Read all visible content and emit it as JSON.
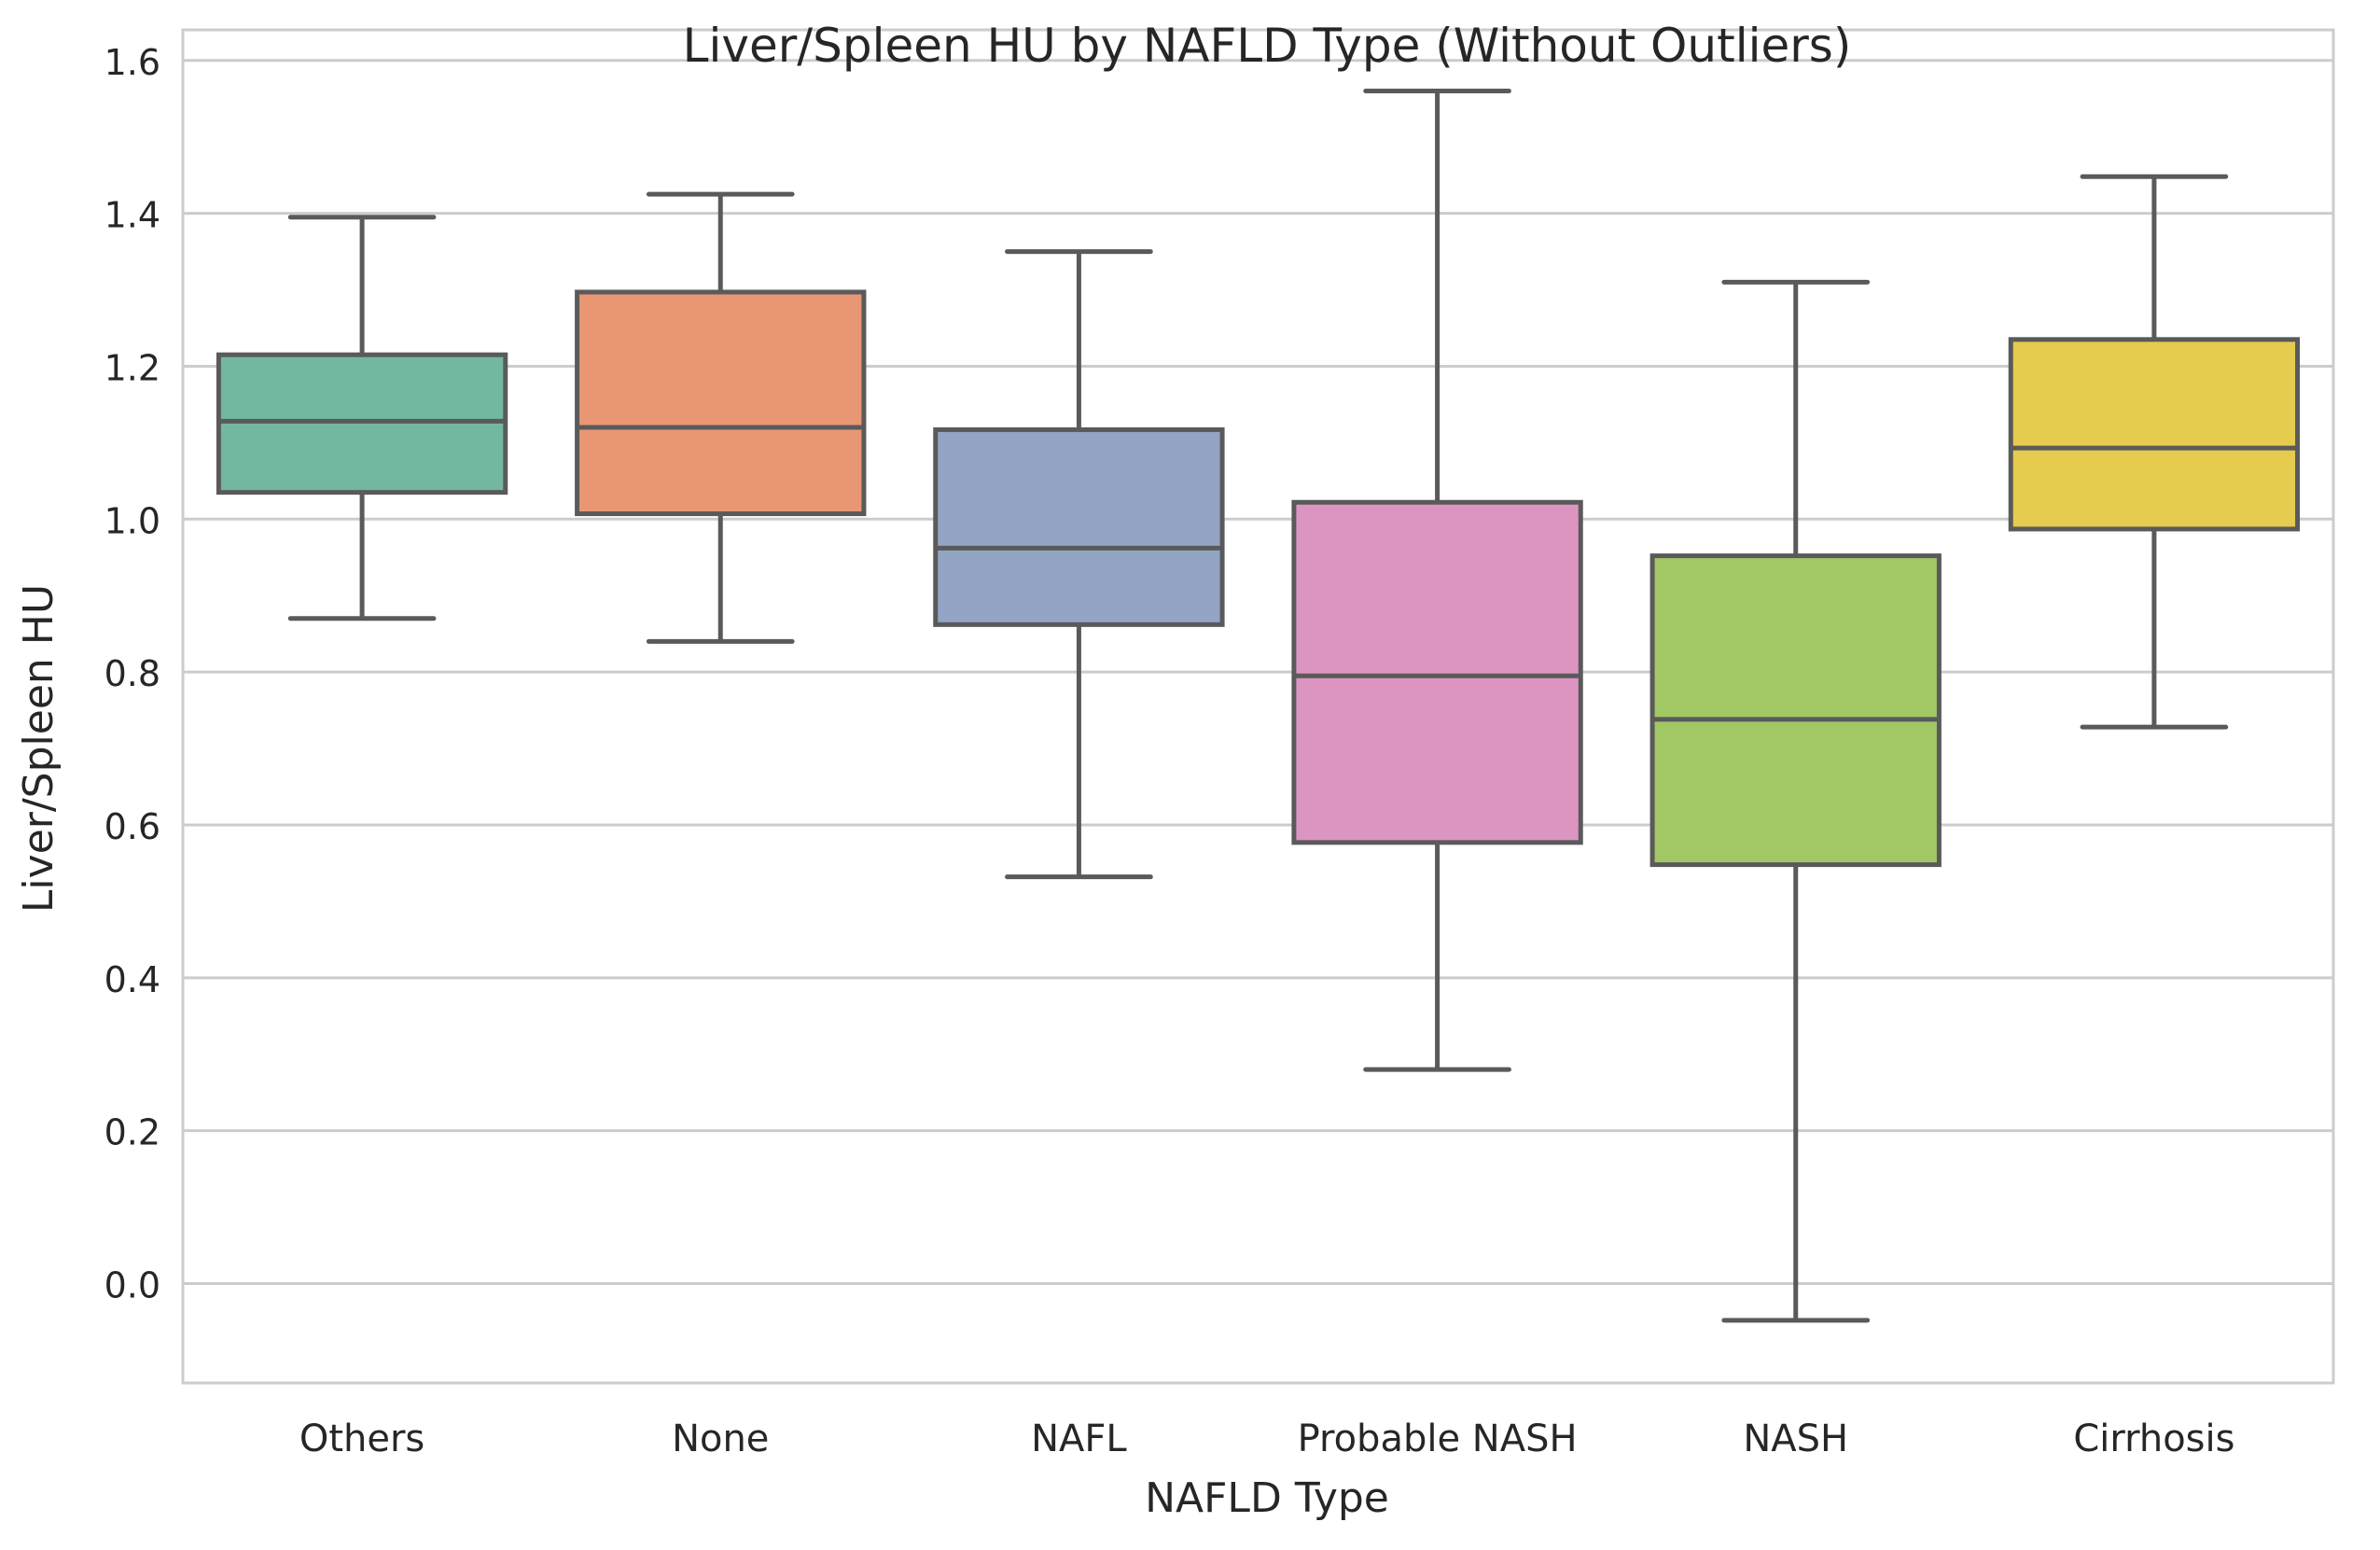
{
  "chart_data": {
    "type": "box",
    "title": "Liver/Spleen HU by NAFLD Type (Without Outliers)",
    "xlabel": "NAFLD Type",
    "ylabel": "Liver/Spleen HU",
    "ylim": [
      -0.13,
      1.64
    ],
    "yticks": [
      0.0,
      0.2,
      0.4,
      0.6,
      0.8,
      1.0,
      1.2,
      1.4,
      1.6
    ],
    "ytick_labels": [
      "0.0",
      "0.2",
      "0.4",
      "0.6",
      "0.8",
      "1.0",
      "1.2",
      "1.4",
      "1.6"
    ],
    "grid": "horizontal",
    "legend": "none",
    "categories": [
      "Others",
      "None",
      "NAFL",
      "Probable NASH",
      "NASH",
      "Cirrhosis"
    ],
    "boxes": [
      {
        "category": "Others",
        "whisker_low": 0.87,
        "q1": 1.035,
        "median": 1.128,
        "q3": 1.215,
        "whisker_high": 1.395,
        "color": "#72b7a0"
      },
      {
        "category": "None",
        "whisker_low": 0.84,
        "q1": 1.007,
        "median": 1.12,
        "q3": 1.297,
        "whisker_high": 1.425,
        "color": "#e99675"
      },
      {
        "category": "NAFL",
        "whisker_low": 0.532,
        "q1": 0.862,
        "median": 0.962,
        "q3": 1.117,
        "whisker_high": 1.35,
        "color": "#93a4c5"
      },
      {
        "category": "Probable NASH",
        "whisker_low": 0.28,
        "q1": 0.577,
        "median": 0.795,
        "q3": 1.022,
        "whisker_high": 1.56,
        "color": "#dc95c1"
      },
      {
        "category": "NASH",
        "whisker_low": -0.048,
        "q1": 0.548,
        "median": 0.738,
        "q3": 0.952,
        "whisker_high": 1.31,
        "color": "#a2c865"
      },
      {
        "category": "Cirrhosis",
        "whisker_low": 0.728,
        "q1": 0.987,
        "median": 1.093,
        "q3": 1.235,
        "whisker_high": 1.448,
        "color": "#e5cb4e"
      }
    ],
    "line_color": "#5a5a5a",
    "grid_color": "#cccccc",
    "spine_color": "#cccccc"
  }
}
